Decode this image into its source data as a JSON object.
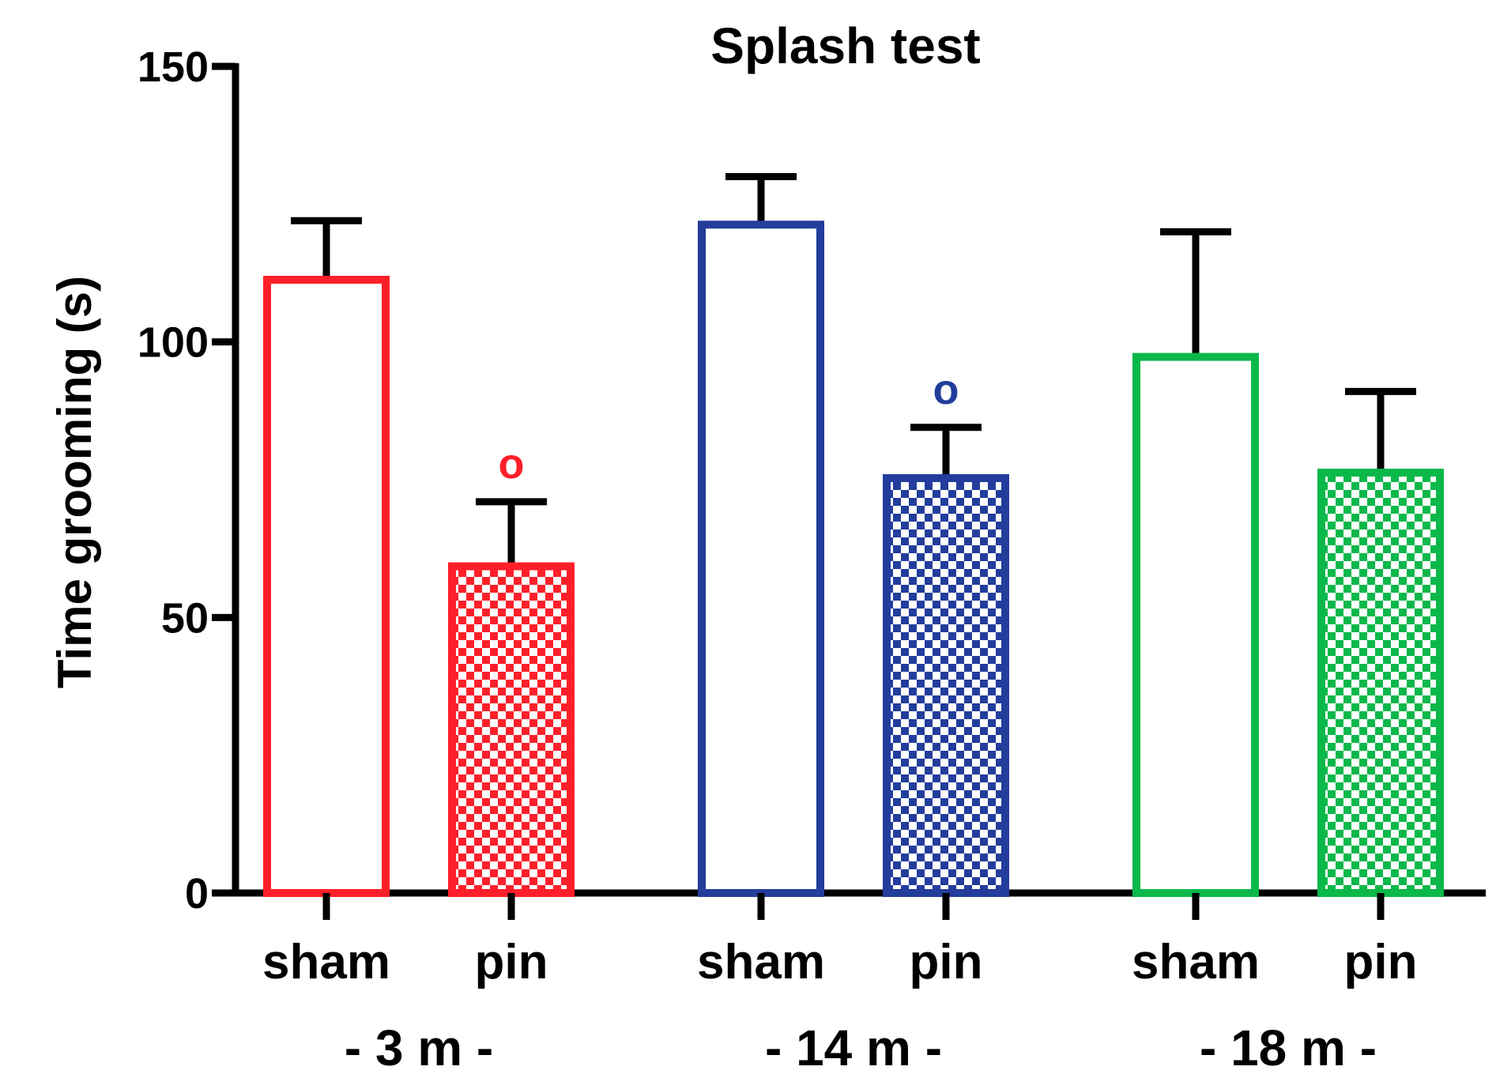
{
  "chart_data": {
    "type": "bar",
    "title": "Splash test",
    "xlabel": "",
    "ylabel": "Time grooming (s)",
    "ylim": [
      0,
      150
    ],
    "yticks": [
      0,
      50,
      100,
      150
    ],
    "groups": [
      {
        "label": "- 3 m -",
        "color": "#ff1f2a",
        "bars": [
          {
            "category": "sham",
            "value": 112,
            "error": 10,
            "fill": "open",
            "annotation": ""
          },
          {
            "category": "pin",
            "value": 60,
            "error": 11,
            "fill": "checkered",
            "annotation": "o"
          }
        ]
      },
      {
        "label": "- 14 m -",
        "color": "#233d9c",
        "bars": [
          {
            "category": "sham",
            "value": 122,
            "error": 8,
            "fill": "open",
            "annotation": ""
          },
          {
            "category": "pin",
            "value": 76,
            "error": 8.5,
            "fill": "checkered",
            "annotation": "o"
          }
        ]
      },
      {
        "label": "- 18 m -",
        "color": "#0bb84a",
        "bars": [
          {
            "category": "sham",
            "value": 98,
            "error": 22,
            "fill": "open",
            "annotation": ""
          },
          {
            "category": "pin",
            "value": 77,
            "error": 14,
            "fill": "checkered",
            "annotation": ""
          }
        ]
      }
    ]
  }
}
